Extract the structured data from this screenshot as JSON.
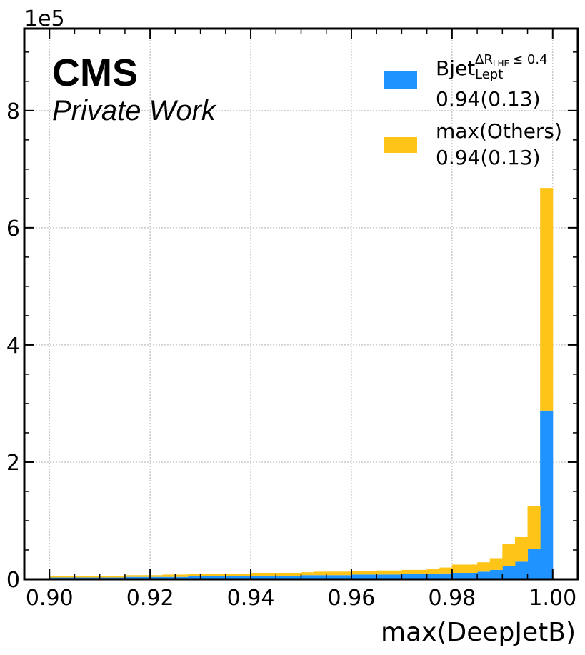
{
  "chart_data": {
    "type": "bar",
    "stacked": true,
    "histogram": true,
    "xlabel": "max(DeepJetB)",
    "ylabel": "",
    "y_multiplier_label": "1e5",
    "xlim": [
      0.895,
      1.005
    ],
    "ylim": [
      0,
      9.4
    ],
    "x_ticks": [
      "0.90",
      "0.92",
      "0.94",
      "0.96",
      "0.98",
      "1.00"
    ],
    "x_tick_values": [
      0.9,
      0.92,
      0.94,
      0.96,
      0.98,
      1.0
    ],
    "y_ticks": [
      "0",
      "2",
      "4",
      "6",
      "8"
    ],
    "y_tick_values": [
      0,
      2,
      4,
      6,
      8
    ],
    "grid": true,
    "legend_placement": "top-right",
    "bin_edges": [
      0.9,
      0.9025,
      0.905,
      0.9075,
      0.91,
      0.9125,
      0.915,
      0.9175,
      0.92,
      0.9225,
      0.925,
      0.9275,
      0.93,
      0.9325,
      0.935,
      0.9375,
      0.94,
      0.9425,
      0.945,
      0.9475,
      0.95,
      0.9525,
      0.955,
      0.9575,
      0.96,
      0.9625,
      0.965,
      0.9675,
      0.97,
      0.9725,
      0.975,
      0.9775,
      0.98,
      0.9825,
      0.985,
      0.9875,
      0.99,
      0.9925,
      0.995,
      0.9975,
      1.0
    ],
    "series": [
      {
        "name": "Bjet",
        "color": "#1f93ff",
        "values": [
          0.03,
          0.03,
          0.03,
          0.03,
          0.03,
          0.03,
          0.04,
          0.04,
          0.04,
          0.04,
          0.04,
          0.05,
          0.05,
          0.05,
          0.05,
          0.05,
          0.06,
          0.06,
          0.06,
          0.06,
          0.07,
          0.07,
          0.07,
          0.07,
          0.08,
          0.08,
          0.08,
          0.08,
          0.09,
          0.09,
          0.09,
          0.1,
          0.11,
          0.11,
          0.13,
          0.16,
          0.23,
          0.3,
          0.52,
          2.88
        ]
      },
      {
        "name": "max(Others)",
        "color": "#fec518",
        "values": [
          0.02,
          0.02,
          0.02,
          0.02,
          0.02,
          0.03,
          0.03,
          0.03,
          0.03,
          0.04,
          0.04,
          0.04,
          0.04,
          0.04,
          0.04,
          0.04,
          0.05,
          0.05,
          0.05,
          0.05,
          0.05,
          0.06,
          0.06,
          0.06,
          0.06,
          0.06,
          0.07,
          0.07,
          0.07,
          0.07,
          0.08,
          0.1,
          0.14,
          0.14,
          0.16,
          0.2,
          0.37,
          0.42,
          0.73,
          3.8
        ]
      }
    ]
  },
  "experiment": {
    "title": "CMS",
    "subtitle": "Private Work"
  },
  "legend": [
    {
      "label": "Bjet",
      "label_sup": "ΔR",
      "label_sup_sub": "LHE",
      "label_sup_tail": "≤ 0.4",
      "label_sub": "Lept",
      "value": "0.94(0.13)",
      "color": "#1f93ff"
    },
    {
      "label": "max(Others)",
      "value": "0.94(0.13)",
      "color": "#fec518"
    }
  ]
}
